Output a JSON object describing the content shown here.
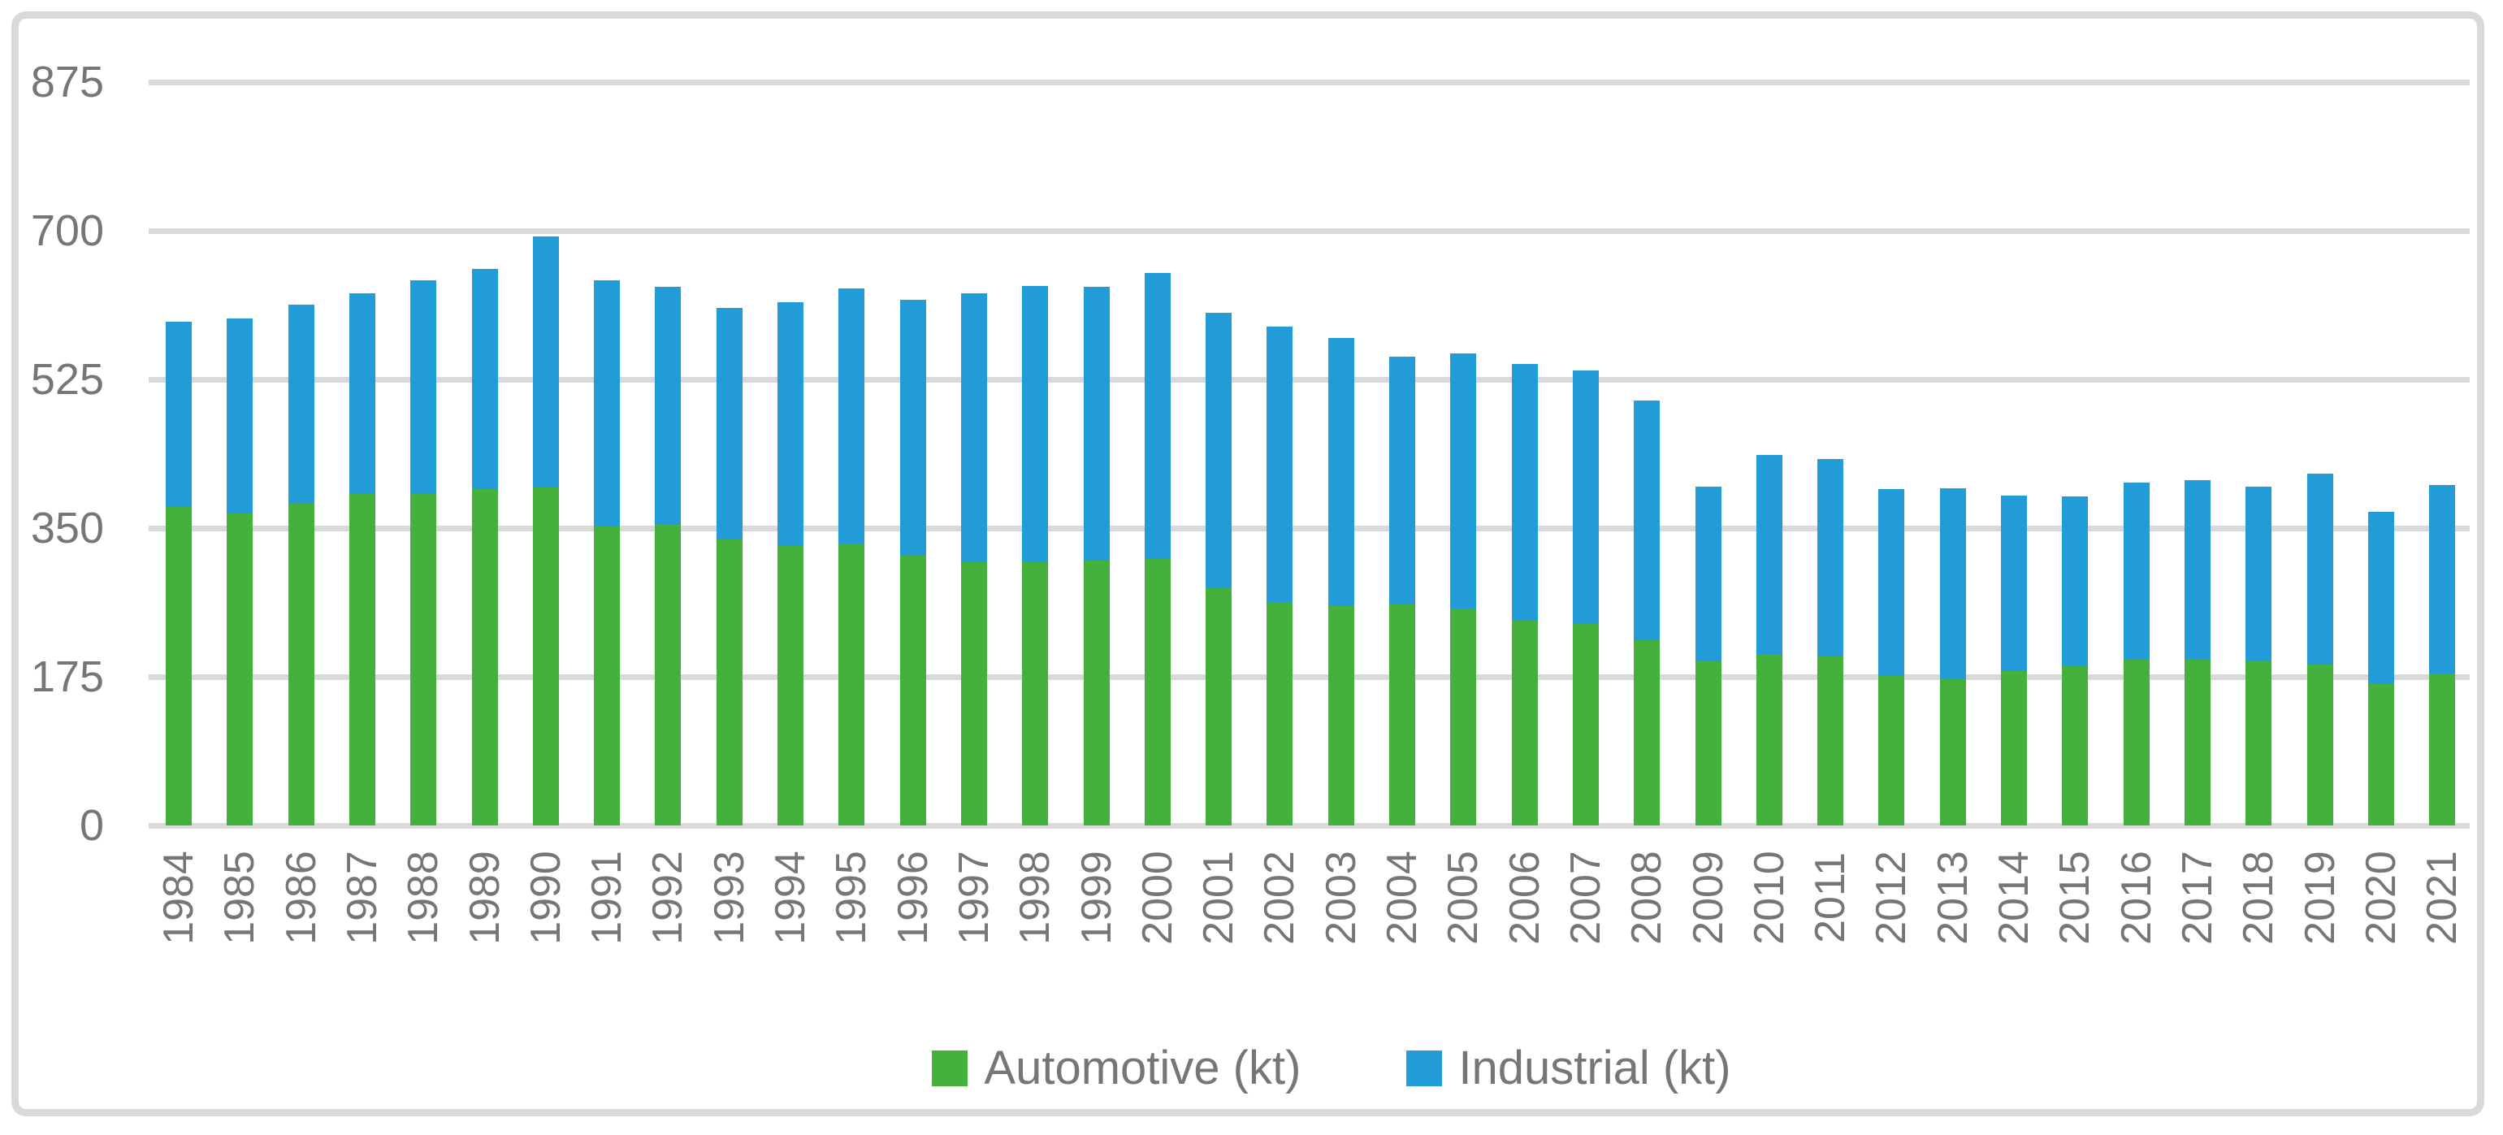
{
  "chart_data": {
    "type": "bar",
    "stacked": true,
    "title": "",
    "xlabel": "",
    "ylabel": "",
    "grid": true,
    "legend_position": "bottom",
    "ylim": [
      0,
      875
    ],
    "y_ticks": [
      875,
      700,
      525,
      350,
      175,
      0
    ],
    "y_tick_labels": [
      "875",
      "700",
      "525",
      "350",
      "175",
      "0"
    ],
    "categories": [
      "1984",
      "1985",
      "1986",
      "1987",
      "1988",
      "1989",
      "1990",
      "1991",
      "1992",
      "1993",
      "1994",
      "1995",
      "1996",
      "1997",
      "1998",
      "1999",
      "2000",
      "2001",
      "2002",
      "2003",
      "2004",
      "2005",
      "2006",
      "2007",
      "2008",
      "2009",
      "2010",
      "2011",
      "2012",
      "2013",
      "2014",
      "2015",
      "2016",
      "2017",
      "2018",
      "2019",
      "2020",
      "2021"
    ],
    "series": [
      {
        "name": "Automotive (kt)",
        "color": "#43B13C",
        "values": [
          375,
          367,
          380,
          390,
          391,
          396,
          399,
          352,
          354,
          338,
          330,
          332,
          318,
          310,
          310,
          312,
          315,
          280,
          263,
          258,
          261,
          255,
          242,
          237,
          218,
          193,
          201,
          200,
          177,
          172,
          182,
          187,
          195,
          196,
          193,
          189,
          166,
          179
        ]
      },
      {
        "name": "Industrial (kt)",
        "color": "#219CD8",
        "values": [
          218,
          230,
          233,
          236,
          251,
          259,
          294,
          290,
          280,
          271,
          286,
          300,
          301,
          316,
          325,
          322,
          335,
          323,
          324,
          316,
          291,
          301,
          301,
          299,
          282,
          206,
          235,
          231,
          219,
          225,
          206,
          200,
          209,
          210,
          206,
          225,
          203,
          222
        ]
      }
    ]
  },
  "colors": {
    "gridline": "#D9D9D9",
    "frame_border": "#D9D9D9",
    "axis_text": "#767676",
    "background": "#FFFFFF"
  },
  "legend": {
    "items": [
      {
        "label": "Automotive (kt)",
        "color": "#43B13C"
      },
      {
        "label": "Industrial (kt)",
        "color": "#219CD8"
      }
    ]
  }
}
